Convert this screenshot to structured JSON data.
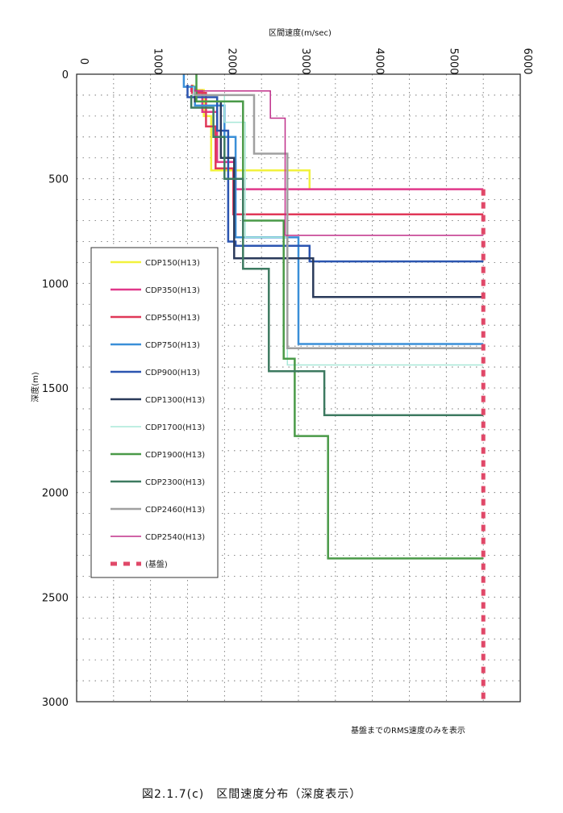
{
  "chart_data": {
    "type": "line",
    "xlabel": "区間速度(m/sec)",
    "ylabel": "深度(m)",
    "xlim": [
      0,
      6000
    ],
    "ylim": [
      0,
      3000
    ],
    "x_ticks": [
      "0",
      "1000",
      "2000",
      "3000",
      "4000",
      "5000",
      "6000"
    ],
    "y_ticks": [
      "0",
      "500",
      "1000",
      "1500",
      "2000",
      "2500",
      "3000"
    ],
    "y_inverted": true,
    "x_axis_position": "top",
    "grid": "dotted",
    "legend_position": "left-middle",
    "note": "基盤までのRMS速度のみを表示",
    "caption": "図2.1.7(c)　区間速度分布（深度表示）",
    "series": [
      {
        "name": "CDP150(H13)",
        "color": "#f2f23c",
        "width": 2.5,
        "dash": "",
        "points": [
          [
            1580,
            50
          ],
          [
            1580,
            75
          ],
          [
            1720,
            75
          ],
          [
            1720,
            200
          ],
          [
            1820,
            200
          ],
          [
            1820,
            460
          ],
          [
            3150,
            460
          ],
          [
            3150,
            550
          ]
        ]
      },
      {
        "name": "CDP350(H13)",
        "color": "#e0388a",
        "width": 2.5,
        "dash": "",
        "points": [
          [
            1550,
            60
          ],
          [
            1550,
            80
          ],
          [
            1700,
            80
          ],
          [
            1700,
            180
          ],
          [
            1900,
            180
          ],
          [
            1900,
            420
          ],
          [
            2150,
            420
          ],
          [
            2150,
            550
          ],
          [
            5500,
            550
          ]
        ]
      },
      {
        "name": "CDP550(H13)",
        "color": "#e03858",
        "width": 2.5,
        "dash": "",
        "points": [
          [
            1560,
            50
          ],
          [
            1560,
            90
          ],
          [
            1750,
            90
          ],
          [
            1750,
            250
          ],
          [
            1880,
            250
          ],
          [
            1880,
            450
          ],
          [
            2120,
            450
          ],
          [
            2120,
            670
          ],
          [
            5500,
            670
          ]
        ]
      },
      {
        "name": "CDP750(H13)",
        "color": "#3a8fd8",
        "width": 2.5,
        "dash": "",
        "points": [
          [
            1450,
            0
          ],
          [
            1450,
            60
          ],
          [
            1600,
            60
          ],
          [
            1600,
            150
          ],
          [
            2000,
            150
          ],
          [
            2000,
            300
          ],
          [
            2150,
            300
          ],
          [
            2150,
            780
          ],
          [
            3000,
            780
          ],
          [
            3000,
            1290
          ],
          [
            5500,
            1290
          ]
        ]
      },
      {
        "name": "CDP900(H13)",
        "color": "#2b55b0",
        "width": 2.5,
        "dash": "",
        "points": [
          [
            1500,
            50
          ],
          [
            1500,
            110
          ],
          [
            1900,
            110
          ],
          [
            1900,
            270
          ],
          [
            2050,
            270
          ],
          [
            2050,
            800
          ],
          [
            2150,
            800
          ],
          [
            2150,
            820
          ],
          [
            3150,
            820
          ],
          [
            3150,
            895
          ],
          [
            5500,
            895
          ]
        ]
      },
      {
        "name": "CDP1300(H13)",
        "color": "#2a3a5a",
        "width": 2.5,
        "dash": "",
        "points": [
          [
            1600,
            80
          ],
          [
            1600,
            130
          ],
          [
            1950,
            130
          ],
          [
            1950,
            400
          ],
          [
            2130,
            400
          ],
          [
            2130,
            880
          ],
          [
            3200,
            880
          ],
          [
            3200,
            1065
          ],
          [
            5500,
            1065
          ]
        ]
      },
      {
        "name": "CDP1700(H13)",
        "color": "#a8e8d8",
        "width": 1.5,
        "dash": "",
        "points": [
          [
            1580,
            60
          ],
          [
            1580,
            100
          ],
          [
            2000,
            100
          ],
          [
            2000,
            230
          ],
          [
            2280,
            230
          ],
          [
            2280,
            780
          ],
          [
            2850,
            780
          ],
          [
            2850,
            1390
          ],
          [
            5500,
            1390
          ]
        ]
      },
      {
        "name": "CDP1900(H13)",
        "color": "#4a9a48",
        "width": 2.5,
        "dash": "",
        "points": [
          [
            1620,
            0
          ],
          [
            1620,
            130
          ],
          [
            2250,
            130
          ],
          [
            2250,
            700
          ],
          [
            2800,
            700
          ],
          [
            2800,
            1360
          ],
          [
            2950,
            1360
          ],
          [
            2950,
            1730
          ],
          [
            3400,
            1730
          ],
          [
            3400,
            2315
          ],
          [
            5500,
            2315
          ]
        ]
      },
      {
        "name": "CDP2300(H13)",
        "color": "#3d7a60",
        "width": 2.5,
        "dash": "",
        "points": [
          [
            1550,
            100
          ],
          [
            1550,
            160
          ],
          [
            1850,
            160
          ],
          [
            1850,
            300
          ],
          [
            2000,
            300
          ],
          [
            2000,
            500
          ],
          [
            2250,
            500
          ],
          [
            2250,
            930
          ],
          [
            2600,
            930
          ],
          [
            2600,
            1420
          ],
          [
            3350,
            1420
          ],
          [
            3350,
            1630
          ],
          [
            5500,
            1630
          ]
        ]
      },
      {
        "name": "CDP2460(H13)",
        "color": "#a0a0a0",
        "width": 2.5,
        "dash": "",
        "points": [
          [
            1600,
            80
          ],
          [
            1600,
            100
          ],
          [
            2400,
            100
          ],
          [
            2400,
            380
          ],
          [
            2850,
            380
          ],
          [
            2850,
            1310
          ],
          [
            5500,
            1310
          ]
        ]
      },
      {
        "name": "CDP2540(H13)",
        "color": "#c0308a",
        "width": 1.5,
        "dash": "",
        "points": [
          [
            1600,
            70
          ],
          [
            1600,
            80
          ],
          [
            2620,
            80
          ],
          [
            2620,
            210
          ],
          [
            2820,
            210
          ],
          [
            2820,
            770
          ],
          [
            5500,
            770
          ]
        ]
      },
      {
        "name": "(基盤)",
        "color": "#e04868",
        "width": 5,
        "dash": "8,8",
        "points": [
          [
            5500,
            550
          ],
          [
            5500,
            2990
          ]
        ]
      }
    ]
  }
}
